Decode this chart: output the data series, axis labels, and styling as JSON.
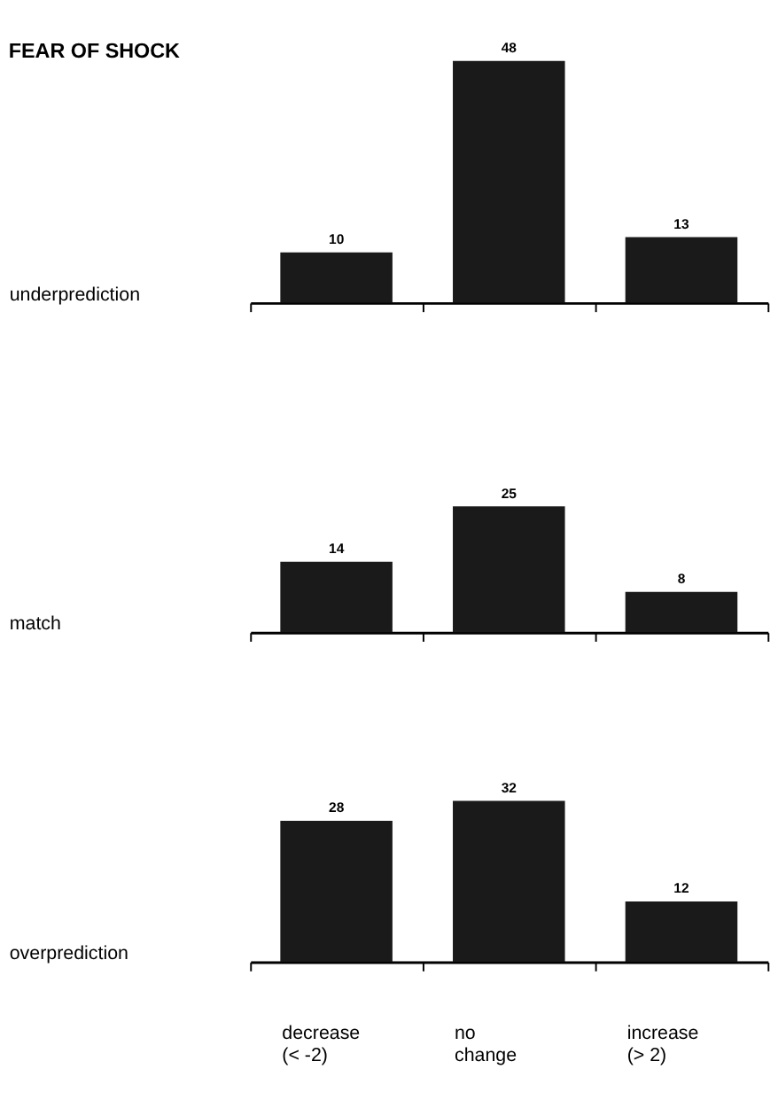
{
  "chart_data": [
    {
      "type": "bar",
      "title": "FEAR OF SHOCK",
      "ylabel": "underprediction",
      "categories": [
        null,
        null,
        null
      ],
      "values": [
        10,
        48,
        13
      ],
      "color": "#1a1a1a",
      "data_labels": true,
      "tick_labels": false
    },
    {
      "type": "bar",
      "ylabel": "match",
      "categories": [
        null,
        null,
        null
      ],
      "values": [
        14,
        25,
        8
      ],
      "color": "#1a1a1a",
      "data_labels": true,
      "tick_labels": false
    },
    {
      "type": "bar",
      "ylabel": "overprediction",
      "categories": [
        "decrease\n(< -2)",
        "no\nchange",
        "increase\n(> 2)"
      ],
      "values": [
        28,
        32,
        12
      ],
      "color": "#1a1a1a",
      "data_labels": true,
      "tick_labels": "x"
    }
  ]
}
